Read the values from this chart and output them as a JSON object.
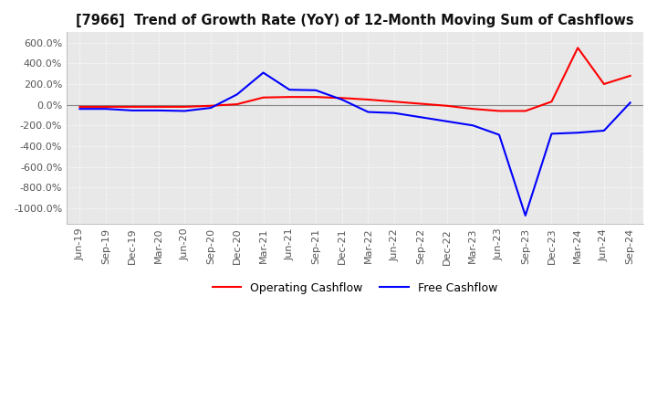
{
  "title": "[7966]  Trend of Growth Rate (YoY) of 12-Month Moving Sum of Cashflows",
  "ylim": [
    -1150,
    700
  ],
  "yticks": [
    600,
    400,
    200,
    0,
    -200,
    -400,
    -600,
    -800,
    -1000
  ],
  "background_color": "#ffffff",
  "plot_bg_color": "#e8e8e8",
  "grid_color": "#ffffff",
  "legend": [
    "Operating Cashflow",
    "Free Cashflow"
  ],
  "legend_colors": [
    "#ff0000",
    "#0000ff"
  ],
  "x_labels": [
    "Jun-19",
    "Sep-19",
    "Dec-19",
    "Mar-20",
    "Jun-20",
    "Sep-20",
    "Dec-20",
    "Mar-21",
    "Jun-21",
    "Sep-21",
    "Dec-21",
    "Mar-22",
    "Jun-22",
    "Sep-22",
    "Dec-22",
    "Mar-23",
    "Jun-23",
    "Sep-23",
    "Dec-23",
    "Mar-24",
    "Jun-24",
    "Sep-24"
  ],
  "operating_cashflow": [
    -20,
    -20,
    -20,
    -20,
    -20,
    -10,
    5,
    70,
    75,
    75,
    65,
    50,
    30,
    10,
    -10,
    -40,
    -60,
    -60,
    30,
    550,
    200,
    280
  ],
  "free_cashflow": [
    -40,
    -40,
    -55,
    -55,
    -60,
    -30,
    100,
    310,
    145,
    140,
    50,
    -70,
    -80,
    -120,
    -160,
    -200,
    -290,
    -1070,
    -280,
    -270,
    -250,
    20
  ]
}
